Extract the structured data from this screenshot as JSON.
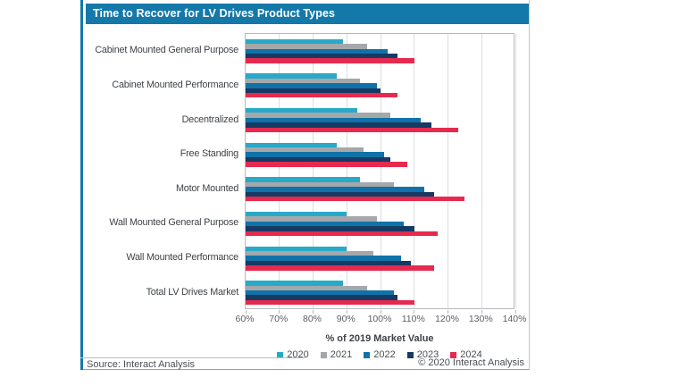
{
  "header": {
    "title": "Time to Recover for LV Drives Product Types"
  },
  "footer": {
    "source": "Source: Interact Analysis",
    "copyright": "© 2020 Interact Analysis"
  },
  "colors": {
    "brand_blue": "#1478a9",
    "gridline": "#dcdee0",
    "plot_border": "#b7babd"
  },
  "chart_data": {
    "type": "bar",
    "orientation": "horizontal",
    "title": "Time to Recover for LV Drives Product Types",
    "xlabel": "% of 2019 Market Value",
    "xlim": [
      60,
      140
    ],
    "x_tick_step": 10,
    "x_tick_labels": [
      "60%",
      "70%",
      "80%",
      "90%",
      "100%",
      "110%",
      "120%",
      "130%",
      "140%"
    ],
    "grid": true,
    "legend_position": "bottom",
    "categories": [
      "Cabinet Mounted General Purpose",
      "Cabinet Mounted Performance",
      "Decentralized",
      "Free Standing",
      "Motor Mounted",
      "Wall Mounted General Purpose",
      "Wall Mounted Performance",
      "Total LV Drives Market"
    ],
    "series": [
      {
        "name": "2020",
        "color": "#29a9c8",
        "values": [
          89,
          87,
          93,
          87,
          94,
          90,
          90,
          89
        ]
      },
      {
        "name": "2021",
        "color": "#a5a8ab",
        "values": [
          96,
          94,
          103,
          95,
          104,
          99,
          98,
          96
        ]
      },
      {
        "name": "2022",
        "color": "#1072a8",
        "values": [
          102,
          99,
          112,
          101,
          113,
          107,
          106,
          104
        ]
      },
      {
        "name": "2023",
        "color": "#173a63",
        "values": [
          105,
          100,
          115,
          103,
          116,
          110,
          109,
          105
        ]
      },
      {
        "name": "2024",
        "color": "#e62a4f",
        "values": [
          110,
          105,
          123,
          108,
          125,
          117,
          116,
          110
        ]
      }
    ]
  }
}
